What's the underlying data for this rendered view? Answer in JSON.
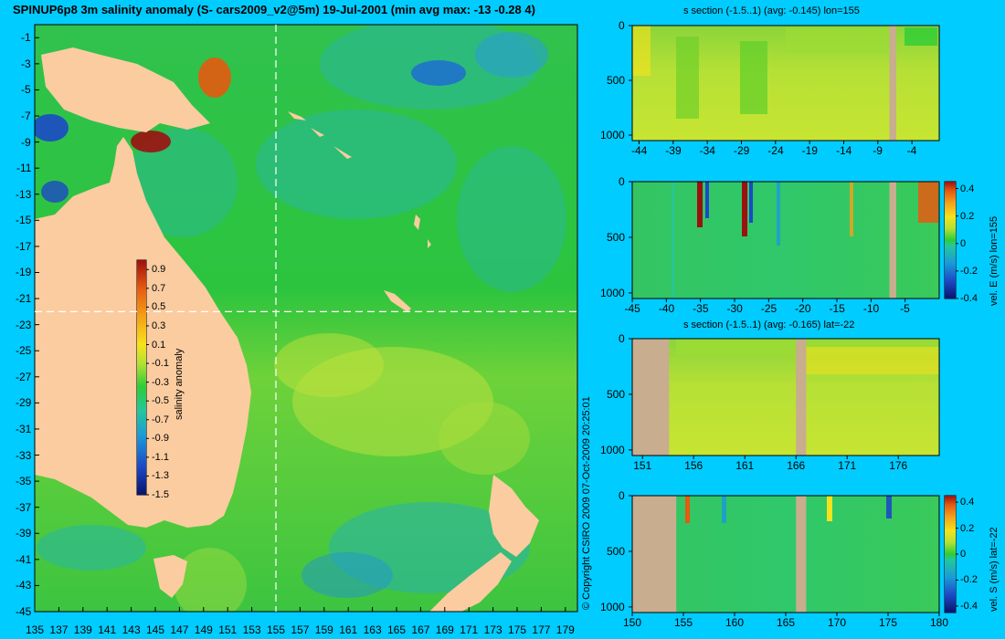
{
  "title": "SPINUP6p8 3m salinity anomaly (S- cars2009_v2@5m) 19-Jul-2001 (min avg max: -13 -0.28 4)",
  "copyright": "© Copyright CSIRO 2009   07-Oct-2009 20:25:01",
  "colors": {
    "background": "#00ccff",
    "land": "#fbcca0",
    "section_land": "#c8ad8f",
    "guide": "#ffffff"
  },
  "colormap": [
    "#08136e",
    "#1c49c6",
    "#1a9ad8",
    "#24c79c",
    "#2ecd36",
    "#5ecf2a",
    "#b4e134",
    "#f6e21a",
    "#f5a018",
    "#e65a10",
    "#9c1010"
  ],
  "chart_data": [
    {
      "id": "map",
      "type": "heatmap",
      "title": "SPINUP6p8 3m salinity anomaly (S- cars2009_v2@5m) 19-Jul-2001 (min avg max: -13 -0.28 4)",
      "xlim": [
        135,
        180
      ],
      "ylim": [
        -45,
        0
      ],
      "xticks": [
        "135",
        "137",
        "139",
        "141",
        "143",
        "145",
        "147",
        "149",
        "151",
        "153",
        "155",
        "157",
        "159",
        "161",
        "163",
        "165",
        "167",
        "169",
        "171",
        "173",
        "175",
        "177",
        "179"
      ],
      "yticks": [
        "-1",
        "-3",
        "-5",
        "-7",
        "-9",
        "-11",
        "-13",
        "-15",
        "-17",
        "-19",
        "-21",
        "-23",
        "-25",
        "-27",
        "-29",
        "-31",
        "-33",
        "-35",
        "-37",
        "-39",
        "-41",
        "-43",
        "-45"
      ],
      "guides": {
        "lon": 155,
        "lat": -22
      },
      "colorbar": {
        "label": "salinity anomaly",
        "range": [
          -1.5,
          1.0
        ],
        "ticks": [
          "0.9",
          "0.7",
          "0.5",
          "0.3",
          "0.1",
          "-0.1",
          "-0.3",
          "-0.5",
          "-0.7",
          "-0.9",
          "-1.1",
          "-1.3",
          "-1.5"
        ]
      }
    },
    {
      "id": "p1",
      "type": "heatmap",
      "title": "s section (-1.5..1) (avg: -0.145) lon=155",
      "xlim": [
        -45,
        0
      ],
      "ylim": [
        1050,
        0
      ],
      "xticks": [
        "-44",
        "-39",
        "-34",
        "-29",
        "-24",
        "-19",
        "-14",
        "-9",
        "-4"
      ],
      "yticks": [
        "0",
        "500",
        "1000"
      ],
      "land_x": [
        [
          -7.3,
          -6.3
        ]
      ],
      "colorbar": null
    },
    {
      "id": "p2",
      "type": "heatmap",
      "title": "",
      "xlim": [
        -45,
        0
      ],
      "ylim": [
        1050,
        0
      ],
      "xticks": [
        "-45",
        "-40",
        "-35",
        "-30",
        "-25",
        "-20",
        "-15",
        "-10",
        "-5"
      ],
      "yticks": [
        "0",
        "500",
        "1000"
      ],
      "land_x": [
        [
          -7.3,
          -6.3
        ]
      ],
      "colorbar": {
        "label": "vel. E (m/s) lon=155",
        "range": [
          -0.4,
          0.45
        ],
        "ticks": [
          "0.4",
          "0.2",
          "0",
          "-0.2",
          "-0.4"
        ]
      }
    },
    {
      "id": "p3",
      "type": "heatmap",
      "title": "s section (-1.5..1) (avg: -0.165) lat=-22",
      "xlim": [
        150,
        180
      ],
      "ylim": [
        1050,
        0
      ],
      "xticks": [
        "151",
        "156",
        "161",
        "166",
        "171",
        "176"
      ],
      "yticks": [
        "0",
        "500",
        "1000"
      ],
      "land_x": [
        [
          150,
          153.6
        ],
        [
          166,
          167
        ]
      ],
      "colorbar": null
    },
    {
      "id": "p4",
      "type": "heatmap",
      "title": "",
      "xlim": [
        150,
        180
      ],
      "ylim": [
        1050,
        0
      ],
      "xticks": [
        "150",
        "155",
        "160",
        "165",
        "170",
        "175",
        "180"
      ],
      "yticks": [
        "0",
        "500",
        "1000"
      ],
      "land_x": [
        [
          150,
          154.3
        ],
        [
          166,
          167
        ]
      ],
      "colorbar": {
        "label": "vel. S (m/s) lat=-22",
        "range": [
          -0.45,
          0.45
        ],
        "ticks": [
          "0.4",
          "0.2",
          "0",
          "-0.2",
          "-0.4"
        ]
      }
    }
  ]
}
